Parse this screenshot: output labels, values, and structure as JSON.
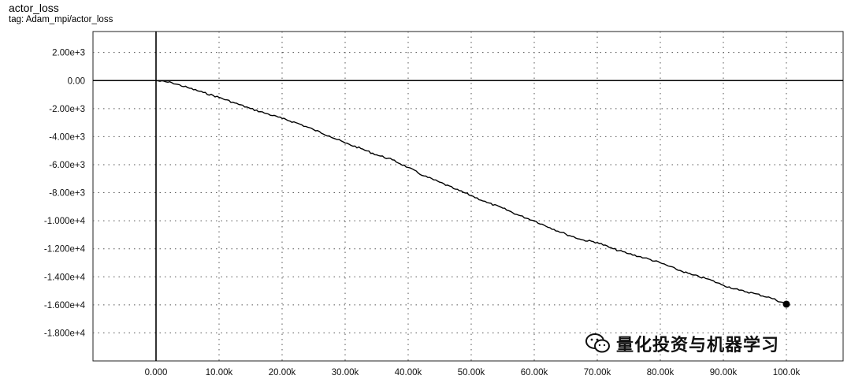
{
  "header": {
    "title": "actor_loss",
    "tag": "tag: Adam_mpi/actor_loss"
  },
  "watermark": {
    "text": "量化投资与机器学习",
    "icon": "wechat-icon"
  },
  "chart_data": {
    "type": "line",
    "title": "actor_loss",
    "subtitle": "tag: Adam_mpi/actor_loss",
    "xlabel": "",
    "ylabel": "",
    "xlim": [
      -10000,
      109000
    ],
    "ylim": [
      -20000,
      3500
    ],
    "grid": true,
    "x_ticks": [
      0,
      10000,
      20000,
      30000,
      40000,
      50000,
      60000,
      70000,
      80000,
      90000,
      100000
    ],
    "x_tick_labels": [
      "0.000",
      "10.00k",
      "20.00k",
      "30.00k",
      "40.00k",
      "50.00k",
      "60.00k",
      "70.00k",
      "80.00k",
      "90.00k",
      "100.0k"
    ],
    "y_ticks": [
      2000,
      0,
      -2000,
      -4000,
      -6000,
      -8000,
      -10000,
      -12000,
      -14000,
      -16000,
      -18000
    ],
    "y_tick_labels": [
      "2.00e+3",
      "0.00",
      "-2.00e+3",
      "-4.00e+3",
      "-6.00e+3",
      "-8.00e+3",
      "-1.000e+4",
      "-1.200e+4",
      "-1.400e+4",
      "-1.600e+4",
      "-1.800e+4"
    ],
    "series": [
      {
        "color": "#000000",
        "x": [
          0,
          2500,
          5000,
          7500,
          10000,
          12500,
          15000,
          17500,
          20000,
          22500,
          25000,
          27500,
          30000,
          32500,
          35000,
          37500,
          40000,
          42500,
          45000,
          47500,
          50000,
          52500,
          55000,
          57500,
          60000,
          62500,
          65000,
          67500,
          70000,
          72500,
          75000,
          77500,
          80000,
          82500,
          85000,
          87500,
          90000,
          92500,
          95000,
          97500,
          100000
        ],
        "y": [
          0,
          -150,
          -500,
          -850,
          -1200,
          -1600,
          -2000,
          -2350,
          -2700,
          -3050,
          -3500,
          -3950,
          -4450,
          -4850,
          -5300,
          -5650,
          -6200,
          -6800,
          -7250,
          -7750,
          -8200,
          -8700,
          -9100,
          -9600,
          -10000,
          -10500,
          -10950,
          -11350,
          -11550,
          -12000,
          -12350,
          -12650,
          -13000,
          -13450,
          -13850,
          -14150,
          -14600,
          -14950,
          -15200,
          -15500,
          -15950
        ]
      }
    ],
    "end_marker": {
      "x": 100000,
      "y": -15950
    }
  }
}
